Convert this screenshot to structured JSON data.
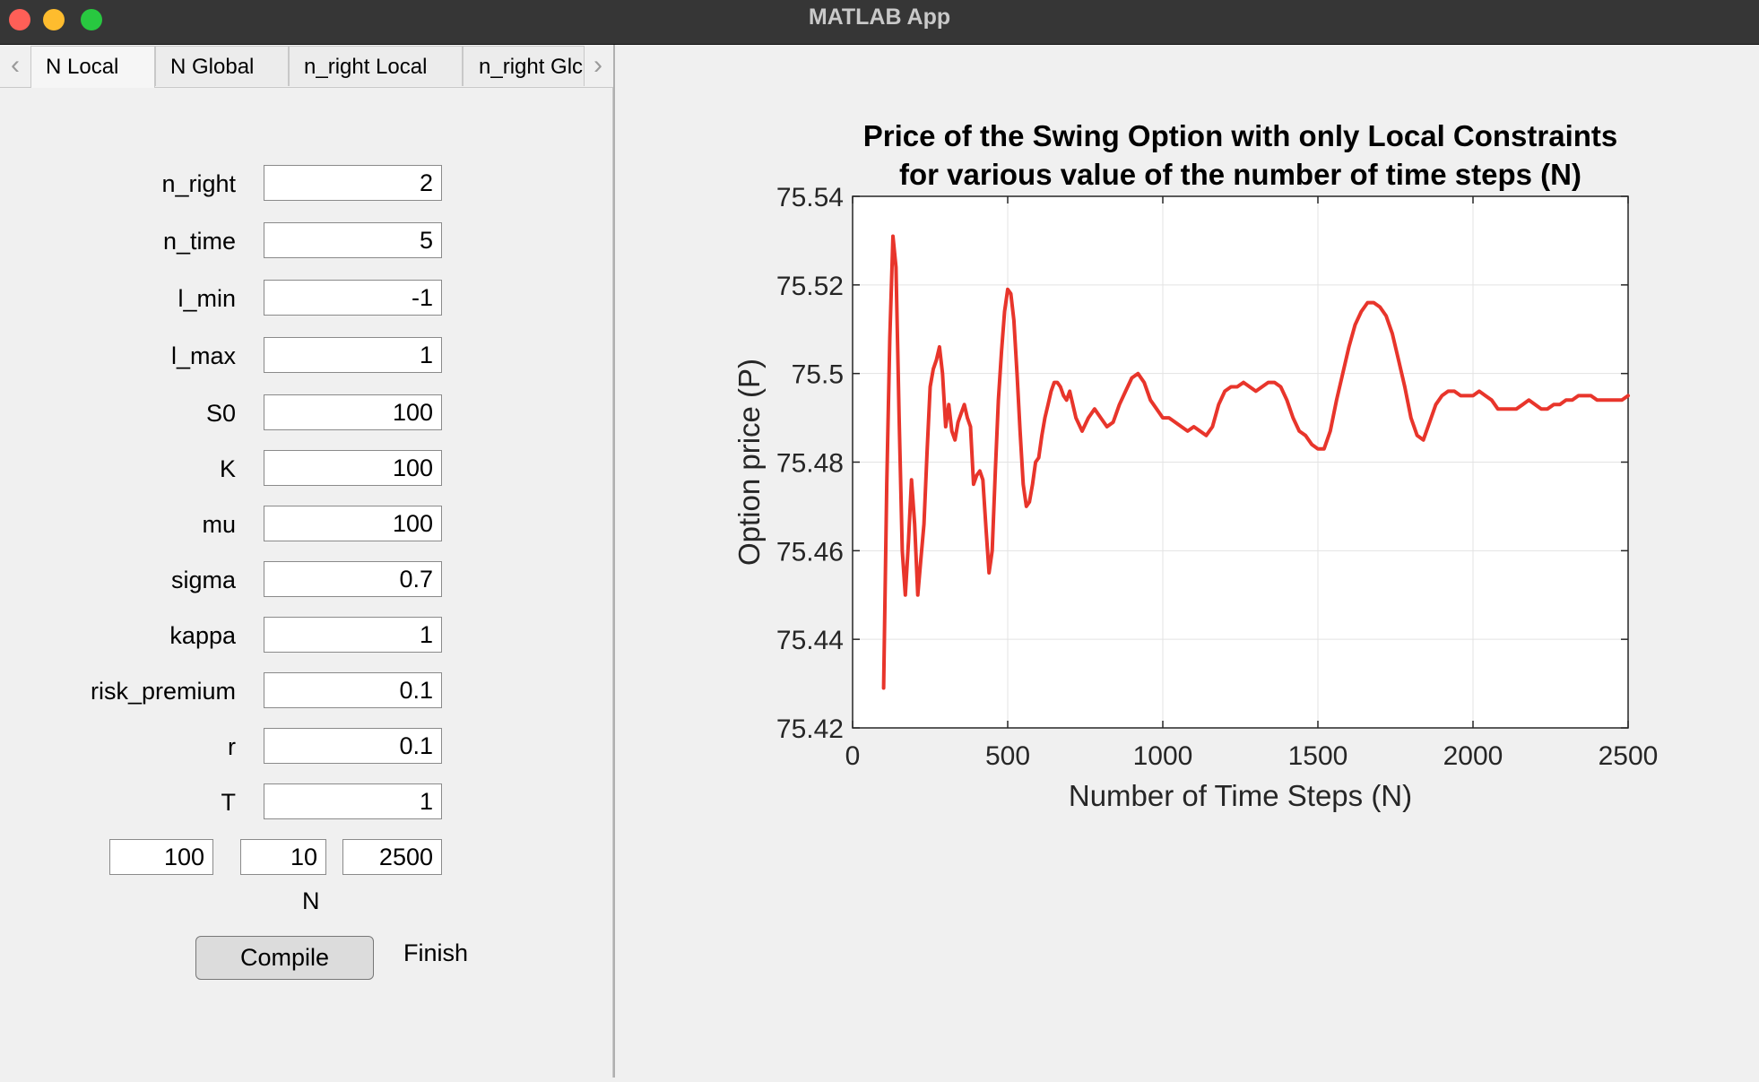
{
  "window": {
    "title": "MATLAB App"
  },
  "tabs": [
    {
      "label": "N Local",
      "active": true
    },
    {
      "label": "N Global",
      "active": false
    },
    {
      "label": "n_right Local",
      "active": false
    },
    {
      "label": "n_right Glc",
      "active": false
    }
  ],
  "params": [
    {
      "label": "n_right",
      "value": "2"
    },
    {
      "label": "n_time",
      "value": "5"
    },
    {
      "label": "l_min",
      "value": "-1"
    },
    {
      "label": "l_max",
      "value": "1"
    },
    {
      "label": "S0",
      "value": "100"
    },
    {
      "label": "K",
      "value": "100"
    },
    {
      "label": "mu",
      "value": "100"
    },
    {
      "label": "sigma",
      "value": "0.7"
    },
    {
      "label": "kappa",
      "value": "1"
    },
    {
      "label": "risk_premium",
      "value": "0.1"
    },
    {
      "label": "r",
      "value": "0.1"
    },
    {
      "label": "T",
      "value": "1"
    }
  ],
  "n_range": {
    "start": "100",
    "step": "10",
    "end": "2500",
    "label": "N"
  },
  "compile_label": "Compile",
  "status": "Finish",
  "colors": {
    "line": "#e8352b",
    "titlebar": "#363636"
  },
  "chart_data": {
    "type": "line",
    "title": [
      "Price of the Swing Option with only Local Constraints",
      "for various value of the number of time steps (N)"
    ],
    "xlabel": "Number of Time Steps (N)",
    "ylabel": "Option price (P)",
    "xlim": [
      0,
      2500
    ],
    "ylim": [
      75.42,
      75.54
    ],
    "xticks": [
      0,
      500,
      1000,
      1500,
      2000,
      2500
    ],
    "yticks": [
      75.42,
      75.44,
      75.46,
      75.48,
      75.5,
      75.52,
      75.54
    ],
    "ytick_labels": [
      "75.42",
      "75.44",
      "75.46",
      "75.48",
      "75.5",
      "75.52",
      "75.54"
    ],
    "grid": true,
    "series": [
      {
        "x": [
          100,
          110,
          120,
          130,
          140,
          150,
          160,
          170,
          180,
          190,
          200,
          210,
          220,
          230,
          240,
          250,
          260,
          270,
          280,
          290,
          300,
          310,
          320,
          330,
          340,
          350,
          360,
          370,
          380,
          390,
          400,
          410,
          420,
          430,
          440,
          450,
          460,
          470,
          480,
          490,
          500,
          510,
          520,
          530,
          540,
          550,
          560,
          570,
          580,
          590,
          600,
          610,
          620,
          630,
          640,
          650,
          660,
          670,
          680,
          690,
          700,
          720,
          740,
          760,
          780,
          800,
          820,
          840,
          860,
          880,
          900,
          920,
          940,
          960,
          980,
          1000,
          1020,
          1040,
          1060,
          1080,
          1100,
          1120,
          1140,
          1160,
          1180,
          1200,
          1220,
          1240,
          1260,
          1280,
          1300,
          1320,
          1340,
          1360,
          1380,
          1400,
          1420,
          1440,
          1460,
          1480,
          1500,
          1520,
          1540,
          1560,
          1580,
          1600,
          1620,
          1640,
          1660,
          1680,
          1700,
          1720,
          1740,
          1760,
          1780,
          1800,
          1820,
          1840,
          1860,
          1880,
          1900,
          1920,
          1940,
          1960,
          1980,
          2000,
          2020,
          2040,
          2060,
          2080,
          2100,
          2120,
          2140,
          2160,
          2180,
          2200,
          2220,
          2240,
          2260,
          2280,
          2300,
          2320,
          2340,
          2360,
          2380,
          2400,
          2420,
          2440,
          2460,
          2480,
          2500
        ],
        "y": [
          75.429,
          75.475,
          75.508,
          75.531,
          75.524,
          75.49,
          75.46,
          75.45,
          75.462,
          75.476,
          75.466,
          75.45,
          75.458,
          75.466,
          75.482,
          75.497,
          75.501,
          75.503,
          75.506,
          75.5,
          75.488,
          75.493,
          75.487,
          75.485,
          75.489,
          75.491,
          75.493,
          75.49,
          75.488,
          75.475,
          75.477,
          75.478,
          75.476,
          75.465,
          75.455,
          75.46,
          75.478,
          75.494,
          75.505,
          75.514,
          75.519,
          75.518,
          75.512,
          75.5,
          75.487,
          75.475,
          75.47,
          75.471,
          75.475,
          75.48,
          75.481,
          75.486,
          75.49,
          75.493,
          75.496,
          75.498,
          75.498,
          75.497,
          75.495,
          75.494,
          75.496,
          75.49,
          75.487,
          75.49,
          75.492,
          75.49,
          75.488,
          75.489,
          75.493,
          75.496,
          75.499,
          75.5,
          75.498,
          75.494,
          75.492,
          75.49,
          75.49,
          75.489,
          75.488,
          75.487,
          75.488,
          75.487,
          75.486,
          75.488,
          75.493,
          75.496,
          75.497,
          75.497,
          75.498,
          75.497,
          75.496,
          75.497,
          75.498,
          75.498,
          75.497,
          75.494,
          75.49,
          75.487,
          75.486,
          75.484,
          75.483,
          75.483,
          75.487,
          75.494,
          75.5,
          75.506,
          75.511,
          75.514,
          75.516,
          75.516,
          75.515,
          75.513,
          75.509,
          75.503,
          75.497,
          75.49,
          75.486,
          75.485,
          75.489,
          75.493,
          75.495,
          75.496,
          75.496,
          75.495,
          75.495,
          75.495,
          75.496,
          75.495,
          75.494,
          75.492,
          75.492,
          75.492,
          75.492,
          75.493,
          75.494,
          75.493,
          75.492,
          75.492,
          75.493,
          75.493,
          75.494,
          75.494,
          75.495,
          75.495,
          75.495,
          75.494,
          75.494,
          75.494,
          75.494,
          75.494,
          75.495
        ]
      }
    ]
  }
}
